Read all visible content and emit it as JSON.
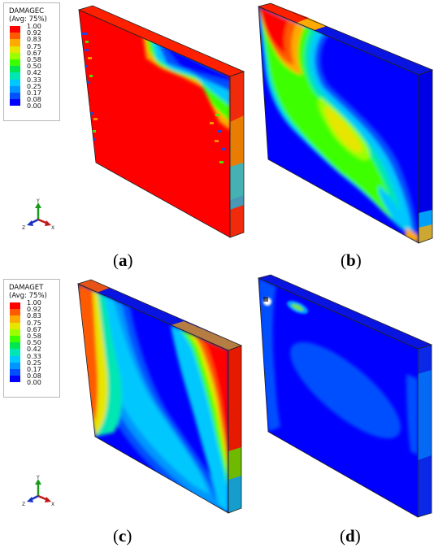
{
  "legends": [
    {
      "title": "DAMAGEC",
      "subtitle": "(Avg: 75%)"
    },
    {
      "title": "DAMAGET",
      "subtitle": "(Avg: 75%)"
    }
  ],
  "legend_ticks": [
    "1.00",
    "0.92",
    "0.83",
    "0.75",
    "0.67",
    "0.58",
    "0.50",
    "0.42",
    "0.33",
    "0.25",
    "0.17",
    "0.08",
    "0.00"
  ],
  "legend_colors": [
    "#ff0000",
    "#ff5a00",
    "#ffaa00",
    "#e6e600",
    "#9bff00",
    "#3cff00",
    "#00e650",
    "#00e6b4",
    "#00c8ff",
    "#0096ff",
    "#0050ff",
    "#0000ff"
  ],
  "triad_axes": {
    "y": "Y",
    "x": "X",
    "z": "Z"
  },
  "panels": [
    {
      "open": "(",
      "letter": "a",
      "close": ")"
    },
    {
      "open": "(",
      "letter": "b",
      "close": ")"
    },
    {
      "open": "(",
      "letter": "c",
      "close": ")"
    },
    {
      "open": "(",
      "letter": "d",
      "close": ")"
    }
  ]
}
